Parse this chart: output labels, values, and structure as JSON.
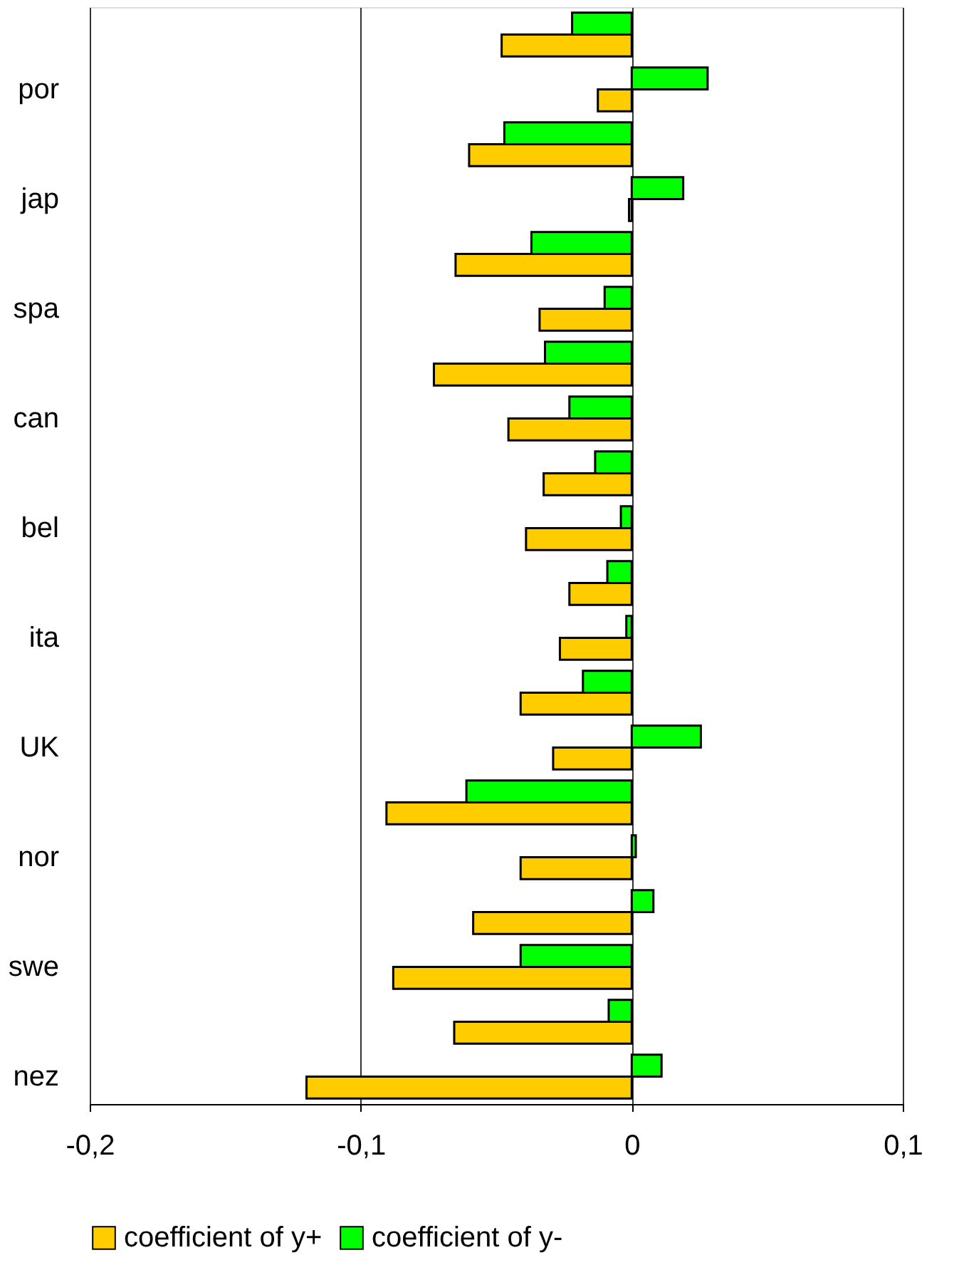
{
  "chart_data": {
    "type": "bar",
    "orientation": "horizontal",
    "categories": [
      null,
      "por",
      null,
      "jap",
      null,
      "spa",
      null,
      "can",
      null,
      "bel",
      null,
      "ita",
      null,
      "UK",
      null,
      "nor",
      null,
      "swe",
      null,
      "nez"
    ],
    "series": [
      {
        "name": "coefficient of y+",
        "color": "#ffcc00",
        "values": [
          -0.048,
          -0.0125,
          -0.06,
          -0.001,
          -0.065,
          -0.034,
          -0.073,
          -0.0455,
          -0.0325,
          -0.039,
          -0.023,
          -0.0265,
          -0.041,
          -0.029,
          -0.0905,
          -0.041,
          -0.0585,
          -0.088,
          -0.0655,
          -0.12
        ]
      },
      {
        "name": "coefficient of y-",
        "color": "#00ff00",
        "values": [
          -0.022,
          0.028,
          -0.047,
          0.019,
          -0.037,
          -0.01,
          -0.032,
          -0.023,
          -0.0135,
          -0.004,
          -0.009,
          -0.002,
          -0.018,
          0.0255,
          -0.061,
          0.0015,
          0.008,
          -0.041,
          -0.0085,
          0.011
        ]
      }
    ],
    "xlim": [
      -0.2,
      0.1
    ],
    "xticks": [
      {
        "value": -0.2,
        "label": "-0,2"
      },
      {
        "value": -0.1,
        "label": "-0,1"
      },
      0,
      {
        "value": 0.1,
        "label": "0,1"
      }
    ],
    "grid": "x",
    "legend": "bottom"
  }
}
